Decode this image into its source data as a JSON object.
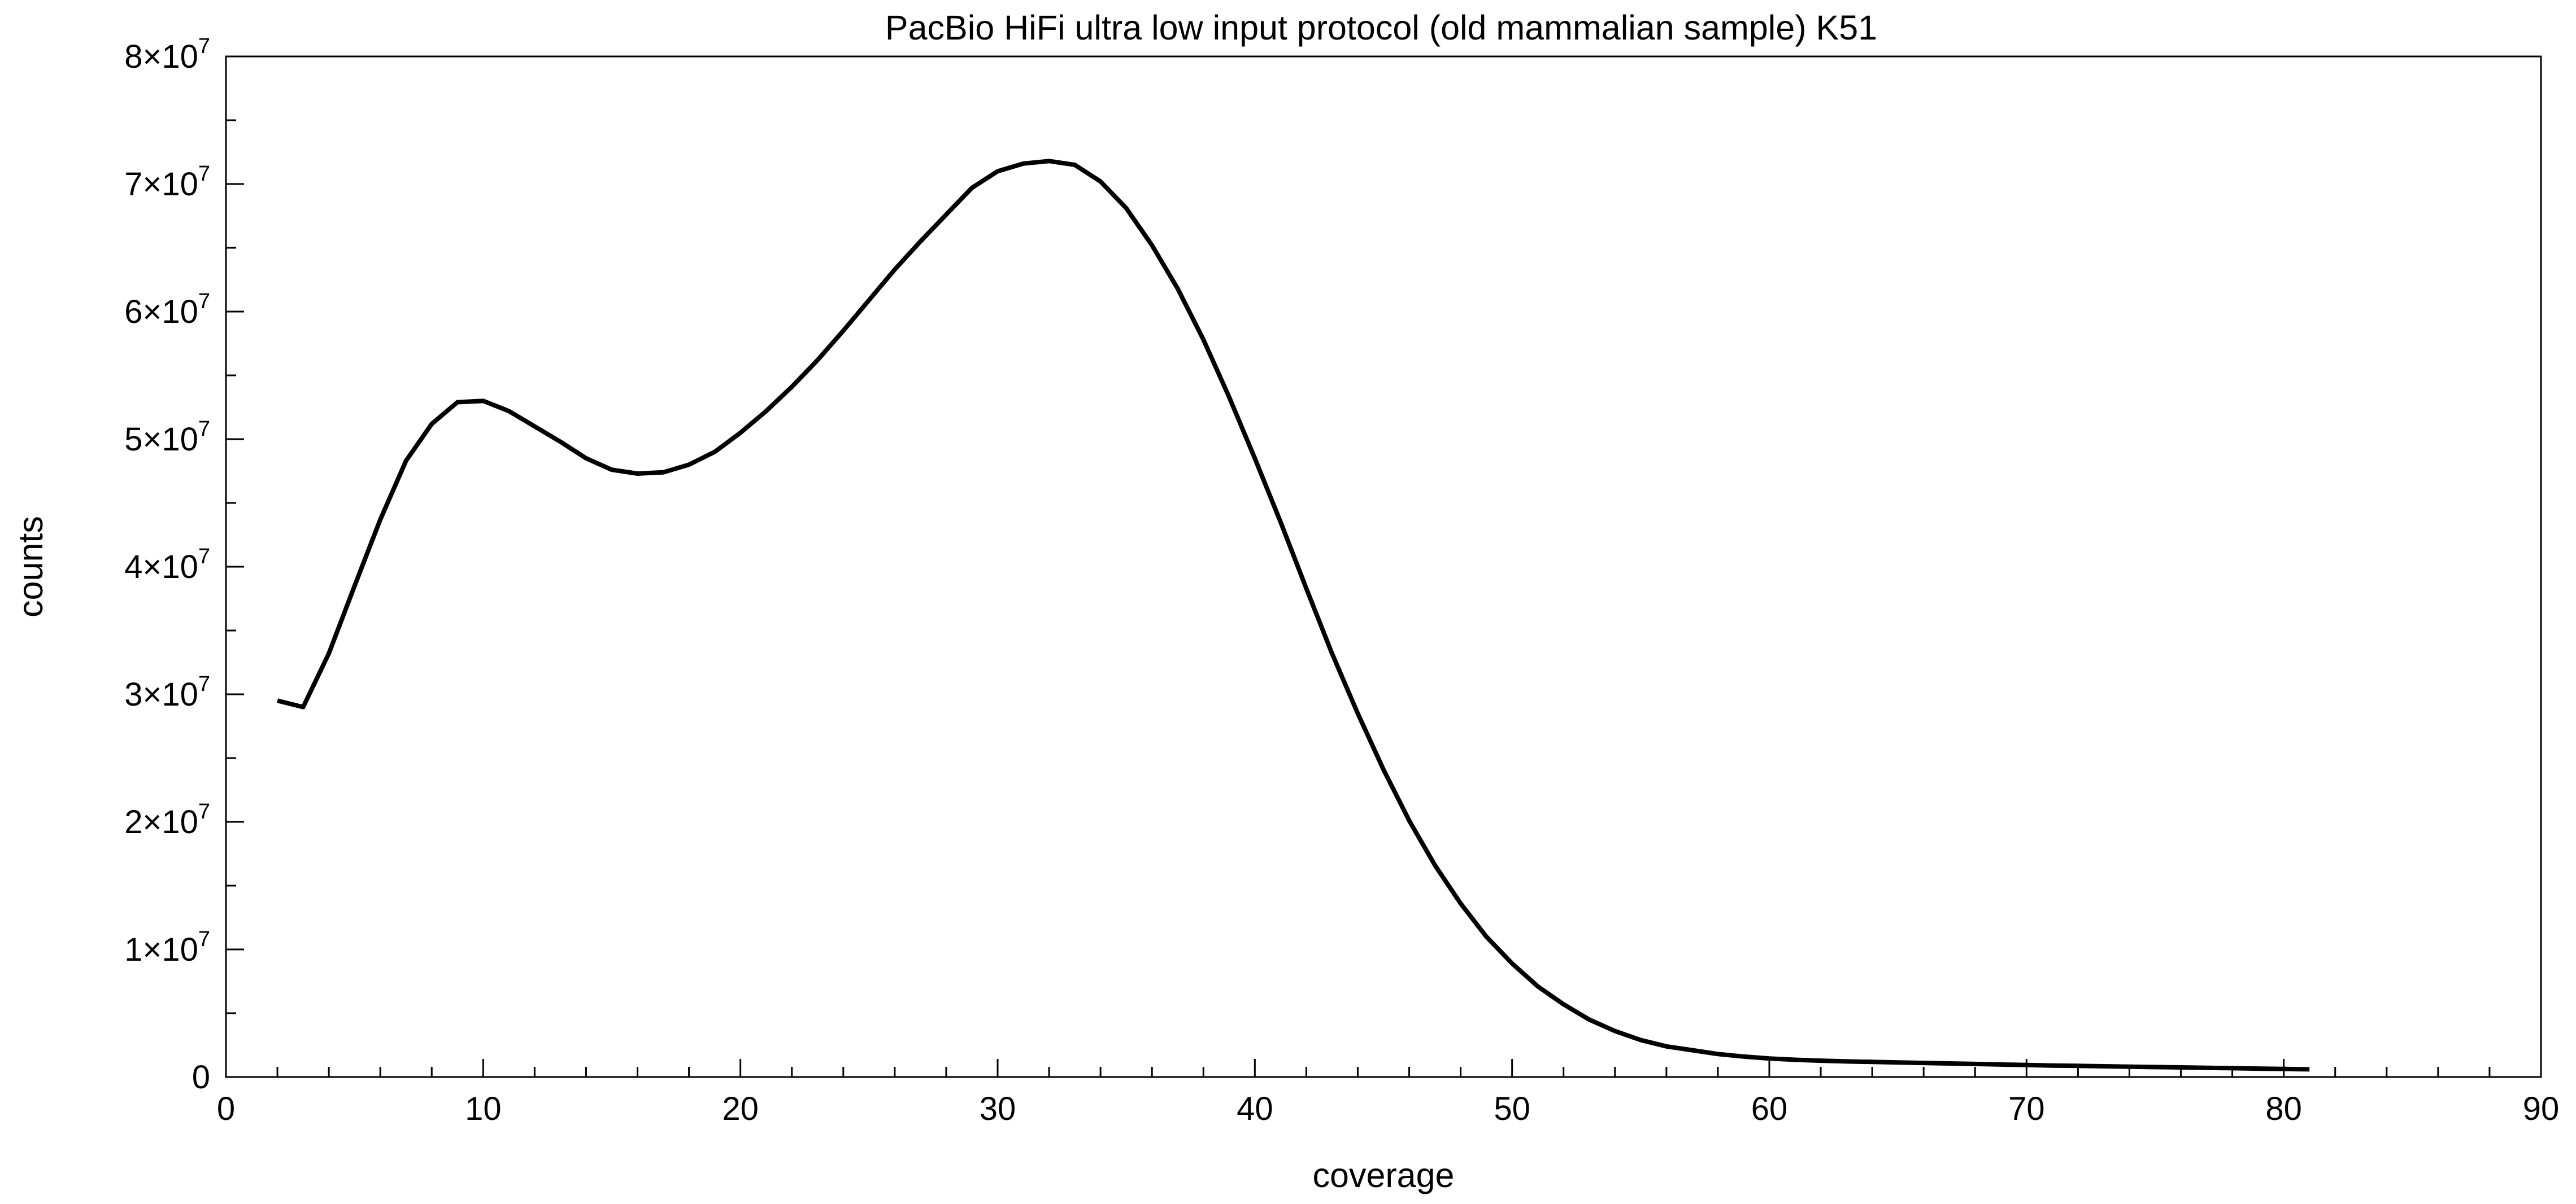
{
  "chart_data": {
    "type": "line",
    "title": "PacBio HiFi ultra low input protocol (old mammalian sample) K51",
    "xlabel": "coverage",
    "ylabel": "counts",
    "xlim": [
      0,
      90
    ],
    "ylim": [
      0,
      80000000
    ],
    "x_ticks": [
      0,
      10,
      20,
      30,
      40,
      50,
      60,
      70,
      80,
      90
    ],
    "x_tick_labels": [
      "0",
      "10",
      "20",
      "30",
      "40",
      "50",
      "60",
      "70",
      "80",
      "90"
    ],
    "x_minor_step": 2,
    "y_ticks": [
      0,
      10000000,
      20000000,
      30000000,
      40000000,
      50000000,
      60000000,
      70000000,
      80000000
    ],
    "y_tick_labels": [
      {
        "mantissa": "0",
        "exponent": ""
      },
      {
        "mantissa": "1×10",
        "exponent": "7"
      },
      {
        "mantissa": "2×10",
        "exponent": "7"
      },
      {
        "mantissa": "3×10",
        "exponent": "7"
      },
      {
        "mantissa": "4×10",
        "exponent": "7"
      },
      {
        "mantissa": "5×10",
        "exponent": "7"
      },
      {
        "mantissa": "6×10",
        "exponent": "7"
      },
      {
        "mantissa": "7×10",
        "exponent": "7"
      },
      {
        "mantissa": "8×10",
        "exponent": "7"
      }
    ],
    "y_minor_step": 5000000,
    "grid": false,
    "legend": "none",
    "line_color": "#000000",
    "series": [
      {
        "x": [
          2,
          3,
          4,
          5,
          6,
          7,
          8,
          9,
          10,
          11,
          12,
          13,
          14,
          15,
          16,
          17,
          18,
          19,
          20,
          21,
          22,
          23,
          24,
          25,
          26,
          27,
          28,
          29,
          30,
          31,
          32,
          33,
          34,
          35,
          36,
          37,
          38,
          39,
          40,
          41,
          42,
          43,
          44,
          45,
          46,
          47,
          48,
          49,
          50,
          51,
          52,
          53,
          54,
          55,
          56,
          57,
          58,
          59,
          60,
          61,
          62,
          63,
          64,
          65,
          66,
          67,
          68,
          69,
          70,
          71,
          72,
          73,
          74,
          75,
          76,
          77,
          78,
          79,
          80,
          81
        ],
        "y": [
          29500000,
          29000000,
          33200000,
          38500000,
          43700000,
          48300000,
          51200000,
          52900000,
          53000000,
          52200000,
          51000000,
          49800000,
          48500000,
          47600000,
          47300000,
          47400000,
          48000000,
          49000000,
          50500000,
          52200000,
          54100000,
          56200000,
          58500000,
          60900000,
          63300000,
          65500000,
          67600000,
          69700000,
          71000000,
          71600000,
          71800000,
          71500000,
          70200000,
          68100000,
          65200000,
          61800000,
          57800000,
          53300000,
          48500000,
          43500000,
          38300000,
          33200000,
          28500000,
          24100000,
          20100000,
          16600000,
          13600000,
          11000000,
          8900000,
          7100000,
          5700000,
          4500000,
          3600000,
          2900000,
          2400000,
          2100000,
          1800000,
          1600000,
          1450000,
          1350000,
          1280000,
          1220000,
          1180000,
          1140000,
          1100000,
          1060000,
          1020000,
          980000,
          940000,
          900000,
          870000,
          840000,
          810000,
          780000,
          750000,
          720000,
          690000,
          660000,
          630000,
          600000
        ]
      }
    ]
  }
}
